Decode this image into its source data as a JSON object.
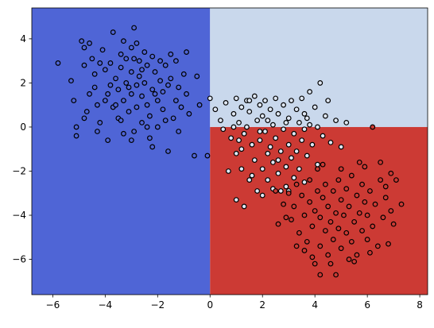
{
  "chart_data": {
    "type": "scatter",
    "title": "",
    "xlabel": "",
    "ylabel": "",
    "xlim": [
      -6.8,
      8.3
    ],
    "ylim": [
      -7.6,
      5.4
    ],
    "grid": false,
    "legend": "none",
    "x_ticks": [
      -6,
      -4,
      -2,
      0,
      2,
      4,
      6,
      8
    ],
    "y_ticks": [
      -6,
      -4,
      -2,
      0,
      2,
      4
    ],
    "x_tick_labels": [
      "−6",
      "−4",
      "−2",
      "0",
      "2",
      "4",
      "6",
      "8"
    ],
    "y_tick_labels": [
      "−6",
      "−4",
      "−2",
      "0",
      "2",
      "4"
    ],
    "decision_regions": [
      {
        "class": "blue",
        "x_range": [
          -6.8,
          0.0
        ],
        "y_range": [
          -7.6,
          5.4
        ],
        "color": "#4f65d6"
      },
      {
        "class": "light",
        "x_range": [
          0.0,
          8.3
        ],
        "y_range": [
          0.0,
          5.4
        ],
        "color": "#c9d8ec"
      },
      {
        "class": "red",
        "x_range": [
          0.0,
          8.3
        ],
        "y_range": [
          -7.6,
          0.0
        ],
        "color": "#cc3a34"
      }
    ],
    "series": [
      {
        "class": "blue",
        "color": "#4f65d6",
        "points": [
          [
            -5.8,
            2.9
          ],
          [
            -5.3,
            2.1
          ],
          [
            -5.2,
            1.2
          ],
          [
            -5.1,
            -0.4
          ],
          [
            -5.1,
            0.0
          ],
          [
            -4.9,
            3.9
          ],
          [
            -4.8,
            3.6
          ],
          [
            -4.8,
            2.8
          ],
          [
            -4.7,
            0.7
          ],
          [
            -4.6,
            3.8
          ],
          [
            -4.5,
            3.1
          ],
          [
            -4.4,
            2.4
          ],
          [
            -4.4,
            1.8
          ],
          [
            -4.3,
            1.0
          ],
          [
            -4.2,
            0.2
          ],
          [
            -4.1,
            3.5
          ],
          [
            -4.0,
            2.6
          ],
          [
            -3.9,
            1.5
          ],
          [
            -3.9,
            -0.6
          ],
          [
            -3.8,
            2.9
          ],
          [
            -3.7,
            4.3
          ],
          [
            -3.7,
            0.9
          ],
          [
            -3.6,
            2.2
          ],
          [
            -3.5,
            1.7
          ],
          [
            -3.5,
            0.4
          ],
          [
            -3.4,
            3.3
          ],
          [
            -3.4,
            2.7
          ],
          [
            -3.3,
            1.2
          ],
          [
            -3.3,
            -0.3
          ],
          [
            -3.2,
            3.1
          ],
          [
            -3.2,
            2.0
          ],
          [
            -3.1,
            0.7
          ],
          [
            -3.0,
            3.6
          ],
          [
            -3.0,
            2.5
          ],
          [
            -3.0,
            1.5
          ],
          [
            -2.9,
            -0.2
          ],
          [
            -2.9,
            4.5
          ],
          [
            -2.8,
            1.9
          ],
          [
            -2.8,
            0.9
          ],
          [
            -2.7,
            3.0
          ],
          [
            -2.7,
            2.3
          ],
          [
            -2.6,
            1.4
          ],
          [
            -2.6,
            0.2
          ],
          [
            -2.5,
            3.4
          ],
          [
            -2.5,
            2.0
          ],
          [
            -2.4,
            2.8
          ],
          [
            -2.4,
            1.0
          ],
          [
            -2.3,
            0.5
          ],
          [
            -2.3,
            -0.5
          ],
          [
            -2.2,
            3.2
          ],
          [
            -2.2,
            1.7
          ],
          [
            -2.1,
            2.5
          ],
          [
            -2.0,
            1.2
          ],
          [
            -2.0,
            0.0
          ],
          [
            -1.9,
            3.0
          ],
          [
            -1.9,
            2.1
          ],
          [
            -1.8,
            1.6
          ],
          [
            -1.8,
            0.8
          ],
          [
            -1.7,
            2.8
          ],
          [
            -1.6,
            1.9
          ],
          [
            -1.6,
            -1.1
          ],
          [
            -1.5,
            3.3
          ],
          [
            -1.5,
            2.2
          ],
          [
            -1.4,
            0.4
          ],
          [
            -1.3,
            3.0
          ],
          [
            -1.2,
            1.8
          ],
          [
            -1.2,
            -0.2
          ],
          [
            -1.1,
            0.9
          ],
          [
            -1.0,
            2.4
          ],
          [
            -0.9,
            3.4
          ],
          [
            -0.9,
            1.5
          ],
          [
            -0.8,
            0.6
          ],
          [
            -0.5,
            2.3
          ],
          [
            -0.6,
            -1.3
          ],
          [
            -0.4,
            1.0
          ],
          [
            -0.1,
            -1.3
          ],
          [
            -3.6,
            1.0
          ],
          [
            -3.8,
            1.9
          ],
          [
            -4.0,
            1.2
          ],
          [
            -4.6,
            1.5
          ],
          [
            -2.6,
            2.6
          ],
          [
            -2.9,
            3.1
          ],
          [
            -3.1,
            1.8
          ],
          [
            -3.4,
            0.3
          ],
          [
            -2.1,
            1.5
          ],
          [
            -2.4,
            0.0
          ],
          [
            -1.7,
            0.3
          ],
          [
            -1.3,
            1.2
          ],
          [
            -4.2,
            2.9
          ],
          [
            -3.3,
            3.9
          ],
          [
            -2.8,
            3.8
          ],
          [
            -4.8,
            0.4
          ],
          [
            -4.3,
            -0.2
          ],
          [
            -3.0,
            -0.6
          ],
          [
            -2.2,
            -0.9
          ]
        ]
      },
      {
        "class": "light",
        "color": "#dfe7f3",
        "points": [
          [
            0.0,
            1.3
          ],
          [
            0.2,
            0.8
          ],
          [
            0.4,
            0.3
          ],
          [
            0.5,
            -0.1
          ],
          [
            0.6,
            1.1
          ],
          [
            0.8,
            -0.5
          ],
          [
            0.9,
            0.6
          ],
          [
            1.0,
            1.3
          ],
          [
            1.0,
            -1.2
          ],
          [
            1.1,
            0.2
          ],
          [
            1.2,
            0.9
          ],
          [
            1.2,
            -1.9
          ],
          [
            1.3,
            -0.3
          ],
          [
            1.4,
            1.2
          ],
          [
            1.4,
            0.0
          ],
          [
            1.5,
            -2.4
          ],
          [
            1.5,
            0.7
          ],
          [
            1.6,
            -0.8
          ],
          [
            1.7,
            1.4
          ],
          [
            1.7,
            -1.5
          ],
          [
            1.8,
            0.3
          ],
          [
            1.8,
            -2.9
          ],
          [
            1.9,
            1.0
          ],
          [
            1.9,
            -0.6
          ],
          [
            2.0,
            0.5
          ],
          [
            2.0,
            -1.9
          ],
          [
            2.1,
            1.2
          ],
          [
            2.1,
            -0.2
          ],
          [
            2.2,
            -1.2
          ],
          [
            2.2,
            -2.4
          ],
          [
            2.3,
            0.8
          ],
          [
            2.3,
            -0.9
          ],
          [
            2.4,
            0.1
          ],
          [
            2.4,
            -1.6
          ],
          [
            2.5,
            1.3
          ],
          [
            2.5,
            -0.5
          ],
          [
            2.6,
            -2.1
          ],
          [
            2.6,
            0.6
          ],
          [
            2.7,
            -1.1
          ],
          [
            2.8,
            -0.1
          ],
          [
            2.8,
            1.0
          ],
          [
            2.9,
            -1.8
          ],
          [
            2.9,
            -2.7
          ],
          [
            3.0,
            0.4
          ],
          [
            3.0,
            -0.8
          ],
          [
            3.1,
            1.2
          ],
          [
            3.1,
            -1.4
          ],
          [
            3.2,
            -0.3
          ],
          [
            3.2,
            -2.3
          ],
          [
            3.3,
            0.8
          ],
          [
            3.3,
            -1.1
          ],
          [
            3.4,
            0.2
          ],
          [
            3.4,
            -1.9
          ],
          [
            3.5,
            1.3
          ],
          [
            3.5,
            -0.6
          ],
          [
            3.6,
            0.6
          ],
          [
            3.6,
            -2.5
          ],
          [
            3.7,
            -1.3
          ],
          [
            3.8,
            0.1
          ],
          [
            3.8,
            1.6
          ],
          [
            3.9,
            -0.8
          ],
          [
            4.0,
            0.9
          ],
          [
            4.1,
            -1.7
          ],
          [
            4.2,
            2.0
          ],
          [
            4.3,
            -0.4
          ],
          [
            4.4,
            0.5
          ],
          [
            4.6,
            -0.7
          ],
          [
            4.8,
            0.3
          ],
          [
            5.0,
            -0.9
          ],
          [
            5.2,
            0.2
          ],
          [
            1.0,
            -3.3
          ],
          [
            1.3,
            -3.6
          ],
          [
            2.0,
            -3.1
          ],
          [
            2.7,
            -2.9
          ],
          [
            1.6,
            -2.2
          ],
          [
            0.7,
            -2.0
          ],
          [
            1.1,
            -0.6
          ],
          [
            2.4,
            -2.8
          ],
          [
            3.0,
            -2.9
          ],
          [
            0.9,
            0.0
          ],
          [
            1.5,
            1.2
          ],
          [
            2.2,
            0.3
          ],
          [
            3.7,
            0.4
          ],
          [
            4.5,
            1.2
          ],
          [
            4.1,
            0.0
          ],
          [
            3.6,
            -0.1
          ],
          [
            2.9,
            0.2
          ],
          [
            1.9,
            -0.2
          ],
          [
            1.2,
            -1.0
          ],
          [
            2.6,
            -1.5
          ]
        ]
      },
      {
        "class": "red",
        "color": "#cc3a34",
        "points": [
          [
            2.5,
            -2.9
          ],
          [
            2.8,
            -3.5
          ],
          [
            3.0,
            -3.0
          ],
          [
            3.1,
            -4.2
          ],
          [
            3.2,
            -3.6
          ],
          [
            3.3,
            -2.6
          ],
          [
            3.4,
            -4.8
          ],
          [
            3.5,
            -3.1
          ],
          [
            3.6,
            -4.0
          ],
          [
            3.7,
            -5.2
          ],
          [
            3.8,
            -3.4
          ],
          [
            3.8,
            -2.4
          ],
          [
            3.9,
            -4.5
          ],
          [
            4.0,
            -6.2
          ],
          [
            4.0,
            -3.8
          ],
          [
            4.1,
            -2.9
          ],
          [
            4.2,
            -5.4
          ],
          [
            4.2,
            -4.1
          ],
          [
            4.3,
            -3.2
          ],
          [
            4.4,
            -4.7
          ],
          [
            4.4,
            -2.6
          ],
          [
            4.5,
            -5.8
          ],
          [
            4.5,
            -3.6
          ],
          [
            4.6,
            -4.3
          ],
          [
            4.7,
            -2.9
          ],
          [
            4.7,
            -5.1
          ],
          [
            4.8,
            -3.9
          ],
          [
            4.9,
            -4.6
          ],
          [
            4.9,
            -2.4
          ],
          [
            5.0,
            -3.3
          ],
          [
            5.0,
            -5.5
          ],
          [
            5.1,
            -4.0
          ],
          [
            5.2,
            -2.8
          ],
          [
            5.2,
            -4.8
          ],
          [
            5.3,
            -3.6
          ],
          [
            5.4,
            -5.2
          ],
          [
            5.4,
            -2.2
          ],
          [
            5.5,
            -4.3
          ],
          [
            5.6,
            -3.1
          ],
          [
            5.6,
            -5.8
          ],
          [
            5.7,
            -3.9
          ],
          [
            5.8,
            -4.7
          ],
          [
            5.8,
            -2.6
          ],
          [
            5.9,
            -3.4
          ],
          [
            6.0,
            -5.1
          ],
          [
            6.0,
            -4.0
          ],
          [
            6.1,
            -2.9
          ],
          [
            6.2,
            -4.5
          ],
          [
            6.3,
            -3.5
          ],
          [
            6.4,
            -5.4
          ],
          [
            6.5,
            -2.4
          ],
          [
            6.6,
            -4.1
          ],
          [
            6.7,
            -3.2
          ],
          [
            6.9,
            -3.8
          ],
          [
            7.1,
            -2.4
          ],
          [
            7.3,
            -3.5
          ],
          [
            4.3,
            -1.7
          ],
          [
            5.0,
            -1.9
          ],
          [
            5.7,
            -1.6
          ],
          [
            6.2,
            0.0
          ],
          [
            6.5,
            -1.6
          ],
          [
            3.6,
            -5.6
          ],
          [
            4.2,
            -6.7
          ],
          [
            4.6,
            -6.2
          ],
          [
            5.3,
            -6.0
          ],
          [
            6.1,
            -5.7
          ],
          [
            6.8,
            -5.3
          ],
          [
            3.3,
            -5.4
          ],
          [
            2.6,
            -4.4
          ],
          [
            2.9,
            -4.1
          ],
          [
            7.0,
            -4.4
          ],
          [
            6.9,
            -2.1
          ],
          [
            4.8,
            -6.7
          ],
          [
            5.5,
            -6.1
          ],
          [
            3.9,
            -5.9
          ],
          [
            4.1,
            -1.9
          ],
          [
            5.9,
            -1.8
          ],
          [
            6.7,
            -2.7
          ]
        ]
      }
    ]
  }
}
